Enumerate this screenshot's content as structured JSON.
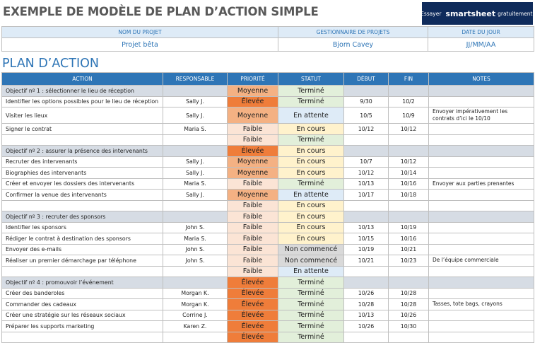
{
  "header": {
    "title": "EXEMPLE DE MODÈLE DE PLAN D’ACTION SIMPLE",
    "banner": {
      "try": "Essayer",
      "brand": "smartsheet",
      "free": "gratuitement."
    }
  },
  "project": {
    "headers": [
      "NOM DU PROJET",
      "GESTIONNAIRE DE PROJETS",
      "DATE DU JOUR"
    ],
    "values": [
      "Projet bêta",
      "Bjorn Cavey",
      "JJ/MM/AA"
    ]
  },
  "section_title": "PLAN D’ACTION",
  "table": {
    "columns": [
      "ACTION",
      "RESPONSABLE",
      "PRIORITÉ",
      "STATUT",
      "DÉBUT",
      "FIN",
      "NOTES"
    ],
    "priority_colors": {
      "Élevée": "#ef7d3a",
      "Moyenne": "#f4b183",
      "Faible": "#fbe4d5"
    },
    "status_colors": {
      "Terminé": "#e2efda",
      "En cours": "#fff2cc",
      "En attente": "#deebf7",
      "Non commencé": "#d9d9d9"
    },
    "rows": [
      {
        "objective": "Objectif nº 1 : sélectionner le lieu de réception",
        "priority": "Moyenne",
        "status": "Terminé"
      },
      {
        "action": "Identifier les options possibles pour le lieu de réception",
        "owner": "Sally J.",
        "priority": "Élevée",
        "status": "Terminé",
        "start": "9/30",
        "end": "10/2"
      },
      {
        "action": "Visiter les lieux",
        "owner": "Sally J.",
        "priority": "Moyenne",
        "status": "En attente",
        "start": "10/5",
        "end": "10/9",
        "notes": "Envoyer impérativement les contrats d’ici le 10/10"
      },
      {
        "action": "Signer le contrat",
        "owner": "Maria S.",
        "priority": "Faible",
        "status": "En cours",
        "start": "10/12",
        "end": "10/12"
      },
      {
        "priority": "Faible",
        "status": "Terminé"
      },
      {
        "objective": "Objectif nº 2 : assurer la présence des intervenants",
        "priority": "Élevée",
        "status": "En cours"
      },
      {
        "action": "Recruter des intervenants",
        "owner": "Sally J.",
        "priority": "Moyenne",
        "status": "En cours",
        "start": "10/7",
        "end": "10/12"
      },
      {
        "action": "Biographies des intervenants",
        "owner": "Sally J.",
        "priority": "Moyenne",
        "status": "En cours",
        "start": "10/12",
        "end": "10/14"
      },
      {
        "action": "Créer et envoyer les dossiers des intervenants",
        "owner": "Maria S.",
        "priority": "Faible",
        "status": "Terminé",
        "start": "10/13",
        "end": "10/16",
        "notes": "Envoyer aux parties prenantes"
      },
      {
        "action": "Confirmer la venue des intervenants",
        "owner": "Sally J.",
        "priority": "Moyenne",
        "status": "En attente",
        "start": "10/17",
        "end": "10/18"
      },
      {
        "priority": "Faible",
        "status": "En cours"
      },
      {
        "objective": "Objectif nº 3 : recruter des sponsors",
        "priority": "Faible",
        "status": "En cours"
      },
      {
        "action": "Identifier les sponsors",
        "owner": "John S.",
        "priority": "Faible",
        "status": "En cours",
        "start": "10/13",
        "end": "10/19"
      },
      {
        "action": "Rédiger le contrat à destination des sponsors",
        "owner": "Maria S.",
        "priority": "Faible",
        "status": "En cours",
        "start": "10/15",
        "end": "10/16"
      },
      {
        "action": "Envoyer des e-mails",
        "owner": "John S.",
        "priority": "Faible",
        "status": "Non commencé",
        "start": "10/19",
        "end": "10/21"
      },
      {
        "action": "Réaliser un premier démarchage par téléphone",
        "owner": "John S.",
        "priority": "Faible",
        "status": "Non commencé",
        "start": "10/21",
        "end": "10/23",
        "notes": "De l’équipe commerciale"
      },
      {
        "priority": "Faible",
        "status": "En attente"
      },
      {
        "objective": "Objectif nº 4 : promouvoir l’événement",
        "priority": "Élevée",
        "status": "Terminé"
      },
      {
        "action": "Créer des banderoles",
        "owner": "Morgan K.",
        "priority": "Élevée",
        "status": "Terminé",
        "start": "10/26",
        "end": "10/28"
      },
      {
        "action": "Commander des cadeaux",
        "owner": "Morgan K.",
        "priority": "Élevée",
        "status": "Terminé",
        "start": "10/28",
        "end": "10/28",
        "notes": "Tasses, tote bags, crayons"
      },
      {
        "action": "Créer une stratégie sur les réseaux sociaux",
        "owner": "Corrine J.",
        "priority": "Élevée",
        "status": "Terminé",
        "start": "10/13",
        "end": "10/26"
      },
      {
        "action": "Préparer les supports marketing",
        "owner": "Karen Z.",
        "priority": "Élevée",
        "status": "Terminé",
        "start": "10/26",
        "end": "10/30"
      },
      {
        "priority": "Élevée",
        "status": "Terminé"
      }
    ]
  }
}
